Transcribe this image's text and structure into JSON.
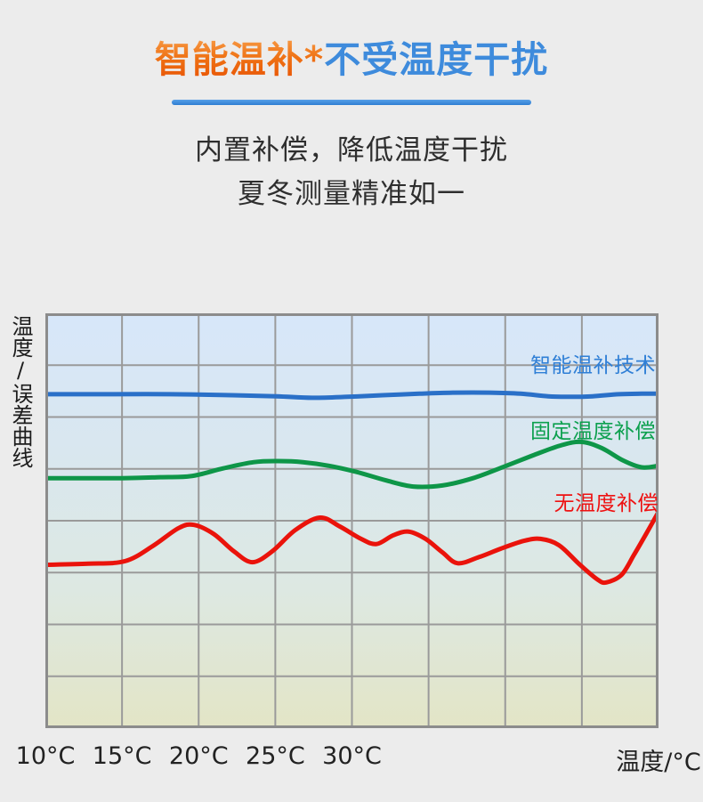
{
  "header": {
    "title_highlight": "智能温补*",
    "title_rest": "不受温度干扰",
    "subtitle_line1": "内置补偿，降低温度干扰",
    "subtitle_line2": "夏冬测量精准如一",
    "accent_orange": "#ee6a08",
    "accent_blue": "#3e8bdc"
  },
  "chart_data": {
    "type": "line",
    "ylabel": "温度/误差曲线",
    "xlabel": "温度/°C",
    "x_range": [
      10,
      50
    ],
    "y_range": [
      0,
      8
    ],
    "x_ticks": [
      {
        "label": "10°C",
        "t": 10
      },
      {
        "label": "15°C",
        "t": 15
      },
      {
        "label": "20°C",
        "t": 20
      },
      {
        "label": "25°C",
        "t": 25
      },
      {
        "label": "30°C",
        "t": 30
      }
    ],
    "grid": {
      "columns": 8,
      "rows": 8,
      "line_color": "#9a9a9a",
      "border_color": "#8c8c8c"
    },
    "background_gradient": [
      "#d7e7fa",
      "#d9e7ef",
      "#dde8e2",
      "#e3e5c6"
    ],
    "series": [
      {
        "name": "智能温补技术",
        "color": "#2a70c8",
        "label_color": "#2f7fd6",
        "points": [
          [
            10,
            6.44
          ],
          [
            14,
            6.44
          ],
          [
            18.1,
            6.44
          ],
          [
            22.2,
            6.42
          ],
          [
            25.1,
            6.4
          ],
          [
            27.4,
            6.37
          ],
          [
            29.7,
            6.39
          ],
          [
            32,
            6.42
          ],
          [
            34.4,
            6.45
          ],
          [
            36.7,
            6.47
          ],
          [
            39,
            6.47
          ],
          [
            41,
            6.45
          ],
          [
            42.8,
            6.4
          ],
          [
            44.2,
            6.39
          ],
          [
            45.7,
            6.4
          ],
          [
            47.4,
            6.44
          ],
          [
            48.9,
            6.45
          ],
          [
            50,
            6.45
          ]
        ]
      },
      {
        "name": "固定温度补偿",
        "color": "#0e9648",
        "label_color": "#0ca04e",
        "points": [
          [
            10,
            4.82
          ],
          [
            15,
            4.82
          ],
          [
            17.5,
            4.84
          ],
          [
            19.5,
            4.86
          ],
          [
            21.6,
            5.01
          ],
          [
            23.6,
            5.13
          ],
          [
            25.2,
            5.15
          ],
          [
            26.8,
            5.13
          ],
          [
            28.5,
            5.06
          ],
          [
            30.3,
            4.94
          ],
          [
            32.2,
            4.78
          ],
          [
            34,
            4.66
          ],
          [
            35.9,
            4.68
          ],
          [
            37.9,
            4.82
          ],
          [
            39.9,
            5.04
          ],
          [
            41.9,
            5.27
          ],
          [
            43.7,
            5.46
          ],
          [
            45,
            5.52
          ],
          [
            46.3,
            5.4
          ],
          [
            47.7,
            5.16
          ],
          [
            48.9,
            5.03
          ],
          [
            50,
            5.06
          ]
        ]
      },
      {
        "name": "无温度补偿",
        "color": "#ea130b",
        "label_color": "#ee1111",
        "points": [
          [
            10,
            3.15
          ],
          [
            12.8,
            3.17
          ],
          [
            15.2,
            3.22
          ],
          [
            17,
            3.51
          ],
          [
            18.7,
            3.86
          ],
          [
            19.7,
            3.92
          ],
          [
            21,
            3.74
          ],
          [
            22.3,
            3.41
          ],
          [
            23.5,
            3.2
          ],
          [
            24.8,
            3.41
          ],
          [
            26.3,
            3.82
          ],
          [
            27.9,
            4.06
          ],
          [
            29.2,
            3.89
          ],
          [
            30.6,
            3.65
          ],
          [
            31.6,
            3.55
          ],
          [
            32.7,
            3.72
          ],
          [
            33.7,
            3.79
          ],
          [
            34.8,
            3.65
          ],
          [
            35.9,
            3.39
          ],
          [
            36.9,
            3.18
          ],
          [
            38.3,
            3.3
          ],
          [
            39.7,
            3.46
          ],
          [
            41.2,
            3.61
          ],
          [
            42.3,
            3.65
          ],
          [
            43.5,
            3.53
          ],
          [
            44.8,
            3.17
          ],
          [
            46,
            2.87
          ],
          [
            46.6,
            2.81
          ],
          [
            47.6,
            2.96
          ],
          [
            48.4,
            3.34
          ],
          [
            49.2,
            3.75
          ],
          [
            50,
            4.17
          ]
        ]
      }
    ]
  }
}
